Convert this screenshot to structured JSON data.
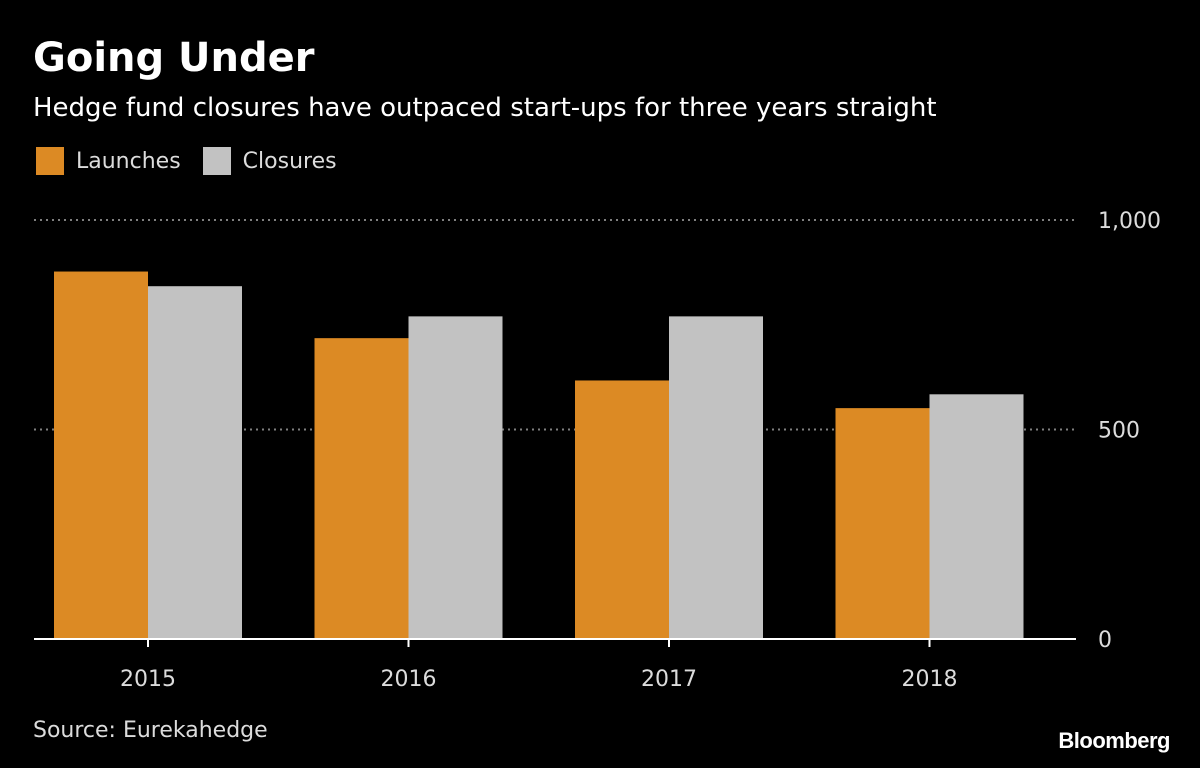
{
  "chart_data": {
    "type": "bar",
    "title": "Going Under",
    "subtitle": "Hedge fund closures have outpaced start-ups for three years straight",
    "categories": [
      "2015",
      "2016",
      "2017",
      "2018"
    ],
    "series": [
      {
        "name": "Launches",
        "values": [
          877,
          718,
          617,
          551
        ],
        "color": "#dc8a24"
      },
      {
        "name": "Closures",
        "values": [
          842,
          770,
          770,
          584
        ],
        "color": "#c2c2c2"
      }
    ],
    "xlabel": "",
    "ylabel": "",
    "ylim": [
      0,
      1000
    ],
    "y_ticks": [
      0,
      500,
      1000
    ],
    "y_tick_labels": [
      "0",
      "500",
      "1,000"
    ],
    "y_axis_side": "right",
    "grid": true,
    "legend_position": "top-left",
    "source": "Source: Eurekahedge",
    "brand": "Bloomberg",
    "background_color": "#000000",
    "gridline_color": "#808080",
    "axis_color": "#ffffff",
    "tick_label_color": "#dcdcdc"
  }
}
